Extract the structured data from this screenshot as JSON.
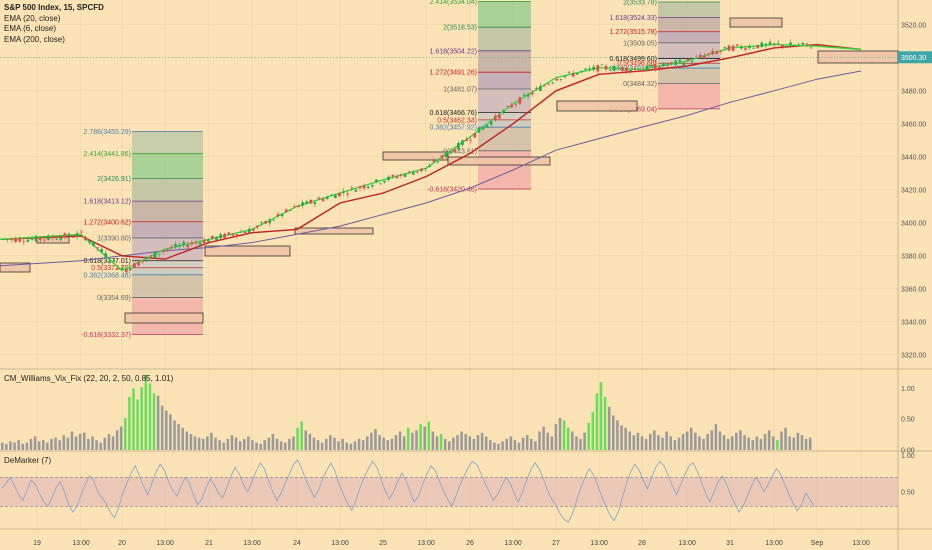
{
  "legend": {
    "title": "S&P 500 Index, 15, SPCFD",
    "ema20": "EMA (20, close)",
    "ema6": "EMA (6, close)",
    "ema200": "EMA (200, close)"
  },
  "indicators": {
    "vix_fix_label": "CM_Williams_Vix_Fix (22, 20, 2, 50, 0.85, 1.01)",
    "demarker_label": "DeMarker (7)"
  },
  "colors": {
    "background": "#FBE3B6",
    "ema20": "#C0221D",
    "ema6": "#3FD43F",
    "ema200": "#6B5E9E",
    "candle_up": "#2BA84A",
    "candle_down": "#E04A4A",
    "vix_high": "#66E05A",
    "vix_normal": "#9A9A9A",
    "demarker_line": "#7FA4C8",
    "demarker_band": "#E3B8B8",
    "price_tag": "#3FA6A6"
  },
  "chart_data": [
    {
      "type": "candlestick",
      "title": "S&P 500 Index, 15, SPCFD",
      "ylim": [
        3312,
        3535
      ],
      "y_ticks": [
        "3320.00",
        "3340.00",
        "3360.00",
        "3380.00",
        "3400.00",
        "3420.00",
        "3440.00",
        "3460.00",
        "3480.00",
        "3500.00",
        "3520.00"
      ],
      "current_price": "3500.30",
      "x_tick_labels": [
        "19",
        "13:00",
        "20",
        "13:00",
        "21",
        "13:00",
        "24",
        "13:00",
        "25",
        "13:00",
        "26",
        "13:00",
        "27",
        "13:00",
        "28",
        "13:00",
        "31",
        "13:00",
        "Sep",
        "13:00"
      ],
      "series": [
        {
          "name": "EMA (20, close)",
          "values_at_ticks": [
            3390,
            3392,
            3380,
            3378,
            3388,
            3394,
            3396,
            3412,
            3418,
            3428,
            3442,
            3460,
            3480,
            3490,
            3492,
            3495,
            3500,
            3506,
            3508,
            3505
          ]
        },
        {
          "name": "EMA (6, close)",
          "values_at_ticks": [
            3390,
            3393,
            3371,
            3384,
            3390,
            3396,
            3410,
            3418,
            3426,
            3433,
            3452,
            3472,
            3488,
            3494,
            3493,
            3498,
            3506,
            3508,
            3507,
            3505
          ]
        },
        {
          "name": "EMA (200, close)",
          "values_at_ticks": [
            3374,
            3377,
            3380,
            3383,
            3385,
            3388,
            3393,
            3398,
            3405,
            3412,
            3421,
            3432,
            3444,
            3451,
            3458,
            3465,
            3473,
            3480,
            3487,
            3492
          ]
        }
      ],
      "fibonacci": [
        {
          "levels": [
            {
              "ratio": "2.786",
              "price": "3455.29"
            },
            {
              "ratio": "2.414",
              "price": "3441.86"
            },
            {
              "ratio": "2",
              "price": "3426.91"
            },
            {
              "ratio": "1.618",
              "price": "3413.12"
            },
            {
              "ratio": "1.272",
              "price": "3400.62"
            },
            {
              "ratio": "1",
              "price": "3390.80"
            },
            {
              "ratio": "0.618",
              "price": "3377.01"
            },
            {
              "ratio": "0.5",
              "price": "3372.75"
            },
            {
              "ratio": "0.382",
              "price": "3368.48"
            },
            {
              "ratio": "0",
              "price": "3354.69"
            },
            {
              "ratio": "-0.618",
              "price": "3332.37"
            }
          ]
        },
        {
          "levels": [
            {
              "ratio": "2.414",
              "price": "3534.04"
            },
            {
              "ratio": "2",
              "price": "3518.53"
            },
            {
              "ratio": "1.618",
              "price": "3504.22"
            },
            {
              "ratio": "1.272",
              "price": "3491.26"
            },
            {
              "ratio": "1",
              "price": "3481.07"
            },
            {
              "ratio": "0.618",
              "price": "3466.76"
            },
            {
              "ratio": "0.5",
              "price": "3462.34"
            },
            {
              "ratio": "0.382",
              "price": "3457.92"
            },
            {
              "ratio": "0",
              "price": "3443.61"
            },
            {
              "ratio": "-0.618",
              "price": "3420.46"
            }
          ]
        },
        {
          "levels": [
            {
              "ratio": "2",
              "price": "3533.78"
            },
            {
              "ratio": "1.618",
              "price": "3524.33"
            },
            {
              "ratio": "1.272",
              "price": "3515.78"
            },
            {
              "ratio": "1",
              "price": "3509.05"
            },
            {
              "ratio": "0.618",
              "price": "3499.60"
            },
            {
              "ratio": "0.5",
              "price": "3496.68"
            },
            {
              "ratio": "0.382",
              "price": "3493.77"
            },
            {
              "ratio": "0",
              "price": "3484.32"
            },
            {
              "ratio": "-0.618",
              "price": "3469.04"
            }
          ]
        }
      ]
    },
    {
      "type": "bar",
      "title": "CM_Williams_Vix_Fix (22, 20, 2, 50, 0.85, 1.01)",
      "ylim": [
        0,
        1.2
      ],
      "y_ticks": [
        "0.00",
        "0.50",
        "1.00"
      ],
      "values": [
        0.12,
        0.1,
        0.14,
        0.12,
        0.16,
        0.1,
        0.12,
        0.18,
        0.22,
        0.14,
        0.16,
        0.12,
        0.18,
        0.2,
        0.16,
        0.24,
        0.2,
        0.3,
        0.22,
        0.26,
        0.28,
        0.18,
        0.22,
        0.16,
        0.12,
        0.2,
        0.26,
        0.22,
        0.32,
        0.38,
        0.52,
        0.86,
        1.0,
        0.82,
        1.02,
        1.22,
        1.08,
        0.92,
        0.88,
        0.72,
        0.64,
        0.58,
        0.48,
        0.42,
        0.36,
        0.3,
        0.26,
        0.22,
        0.2,
        0.18,
        0.22,
        0.28,
        0.2,
        0.16,
        0.12,
        0.18,
        0.24,
        0.2,
        0.14,
        0.18,
        0.22,
        0.16,
        0.12,
        0.1,
        0.16,
        0.2,
        0.26,
        0.18,
        0.14,
        0.12,
        0.18,
        0.22,
        0.36,
        0.46,
        0.32,
        0.26,
        0.2,
        0.16,
        0.12,
        0.18,
        0.24,
        0.2,
        0.14,
        0.18,
        0.12,
        0.1,
        0.14,
        0.18,
        0.16,
        0.22,
        0.28,
        0.34,
        0.24,
        0.2,
        0.16,
        0.18,
        0.24,
        0.3,
        0.22,
        0.36,
        0.28,
        0.32,
        0.42,
        0.38,
        0.46,
        0.3,
        0.22,
        0.26,
        0.18,
        0.14,
        0.2,
        0.24,
        0.3,
        0.26,
        0.22,
        0.18,
        0.24,
        0.28,
        0.22,
        0.16,
        0.12,
        0.1,
        0.14,
        0.18,
        0.22,
        0.16,
        0.12,
        0.2,
        0.24,
        0.18,
        0.14,
        0.3,
        0.38,
        0.28,
        0.22,
        0.42,
        0.52,
        0.48,
        0.36,
        0.3,
        0.22,
        0.18,
        0.28,
        0.44,
        0.62,
        0.92,
        1.1,
        0.86,
        0.7,
        0.56,
        0.48,
        0.4,
        0.36,
        0.3,
        0.24,
        0.28,
        0.22,
        0.18,
        0.26,
        0.32,
        0.24,
        0.2,
        0.3,
        0.22,
        0.16,
        0.2,
        0.26,
        0.3,
        0.36,
        0.28,
        0.22,
        0.18,
        0.26,
        0.32,
        0.42,
        0.3,
        0.24,
        0.18,
        0.22,
        0.28,
        0.32,
        0.24,
        0.2,
        0.16,
        0.22,
        0.18,
        0.26,
        0.32,
        0.22,
        0.16,
        0.3,
        0.36,
        0.22,
        0.2,
        0.28,
        0.24,
        0.18,
        0.2
      ],
      "highlighted_indices": [
        30,
        31,
        32,
        33,
        34,
        35,
        36,
        37,
        72,
        73,
        99,
        102,
        104,
        107,
        137,
        138,
        143,
        144,
        145,
        146,
        147,
        189
      ]
    },
    {
      "type": "line",
      "title": "DeMarker (7)",
      "ylim": [
        0,
        1.05
      ],
      "y_ticks": [
        "0.50",
        "1.00"
      ],
      "band": [
        0.3,
        0.7
      ],
      "values": [
        0.55,
        0.62,
        0.7,
        0.58,
        0.46,
        0.38,
        0.52,
        0.66,
        0.6,
        0.48,
        0.36,
        0.3,
        0.42,
        0.56,
        0.64,
        0.5,
        0.32,
        0.22,
        0.3,
        0.46,
        0.6,
        0.72,
        0.66,
        0.5,
        0.42,
        0.34,
        0.22,
        0.14,
        0.28,
        0.48,
        0.62,
        0.76,
        0.86,
        0.72,
        0.58,
        0.46,
        0.62,
        0.78,
        0.88,
        0.8,
        0.64,
        0.52,
        0.44,
        0.58,
        0.7,
        0.62,
        0.46,
        0.32,
        0.4,
        0.56,
        0.68,
        0.6,
        0.48,
        0.42,
        0.56,
        0.72,
        0.84,
        0.74,
        0.6,
        0.5,
        0.64,
        0.78,
        0.9,
        0.82,
        0.66,
        0.5,
        0.38,
        0.48,
        0.62,
        0.74,
        0.88,
        0.94,
        0.82,
        0.66,
        0.54,
        0.42,
        0.52,
        0.68,
        0.8,
        0.9,
        0.78,
        0.6,
        0.46,
        0.34,
        0.24,
        0.38,
        0.56,
        0.7,
        0.82,
        0.92,
        0.84,
        0.68,
        0.52,
        0.4,
        0.5,
        0.64,
        0.76,
        0.66,
        0.5,
        0.36,
        0.44,
        0.6,
        0.74,
        0.86,
        0.8,
        0.66,
        0.52,
        0.4,
        0.3,
        0.44,
        0.6,
        0.72,
        0.84,
        0.92,
        0.88,
        0.76,
        0.62,
        0.5,
        0.38,
        0.46,
        0.58,
        0.7,
        0.62,
        0.48,
        0.36,
        0.5,
        0.66,
        0.8,
        0.9,
        0.82,
        0.68,
        0.52,
        0.4,
        0.32,
        0.2,
        0.12,
        0.08,
        0.2,
        0.38,
        0.56,
        0.7,
        0.82,
        0.74,
        0.6,
        0.44,
        0.3,
        0.18,
        0.1,
        0.22,
        0.42,
        0.62,
        0.78,
        0.88,
        0.8,
        0.66,
        0.54,
        0.7,
        0.84,
        0.92,
        0.86,
        0.72,
        0.58,
        0.46,
        0.6,
        0.74,
        0.86,
        0.9,
        0.78,
        0.62,
        0.48,
        0.36,
        0.5,
        0.64,
        0.72,
        0.6,
        0.46,
        0.34,
        0.22,
        0.3,
        0.44,
        0.58,
        0.7,
        0.62,
        0.5,
        0.6,
        0.72,
        0.82,
        0.74,
        0.6,
        0.46,
        0.34,
        0.24,
        0.32,
        0.48,
        0.4,
        0.3
      ]
    }
  ]
}
